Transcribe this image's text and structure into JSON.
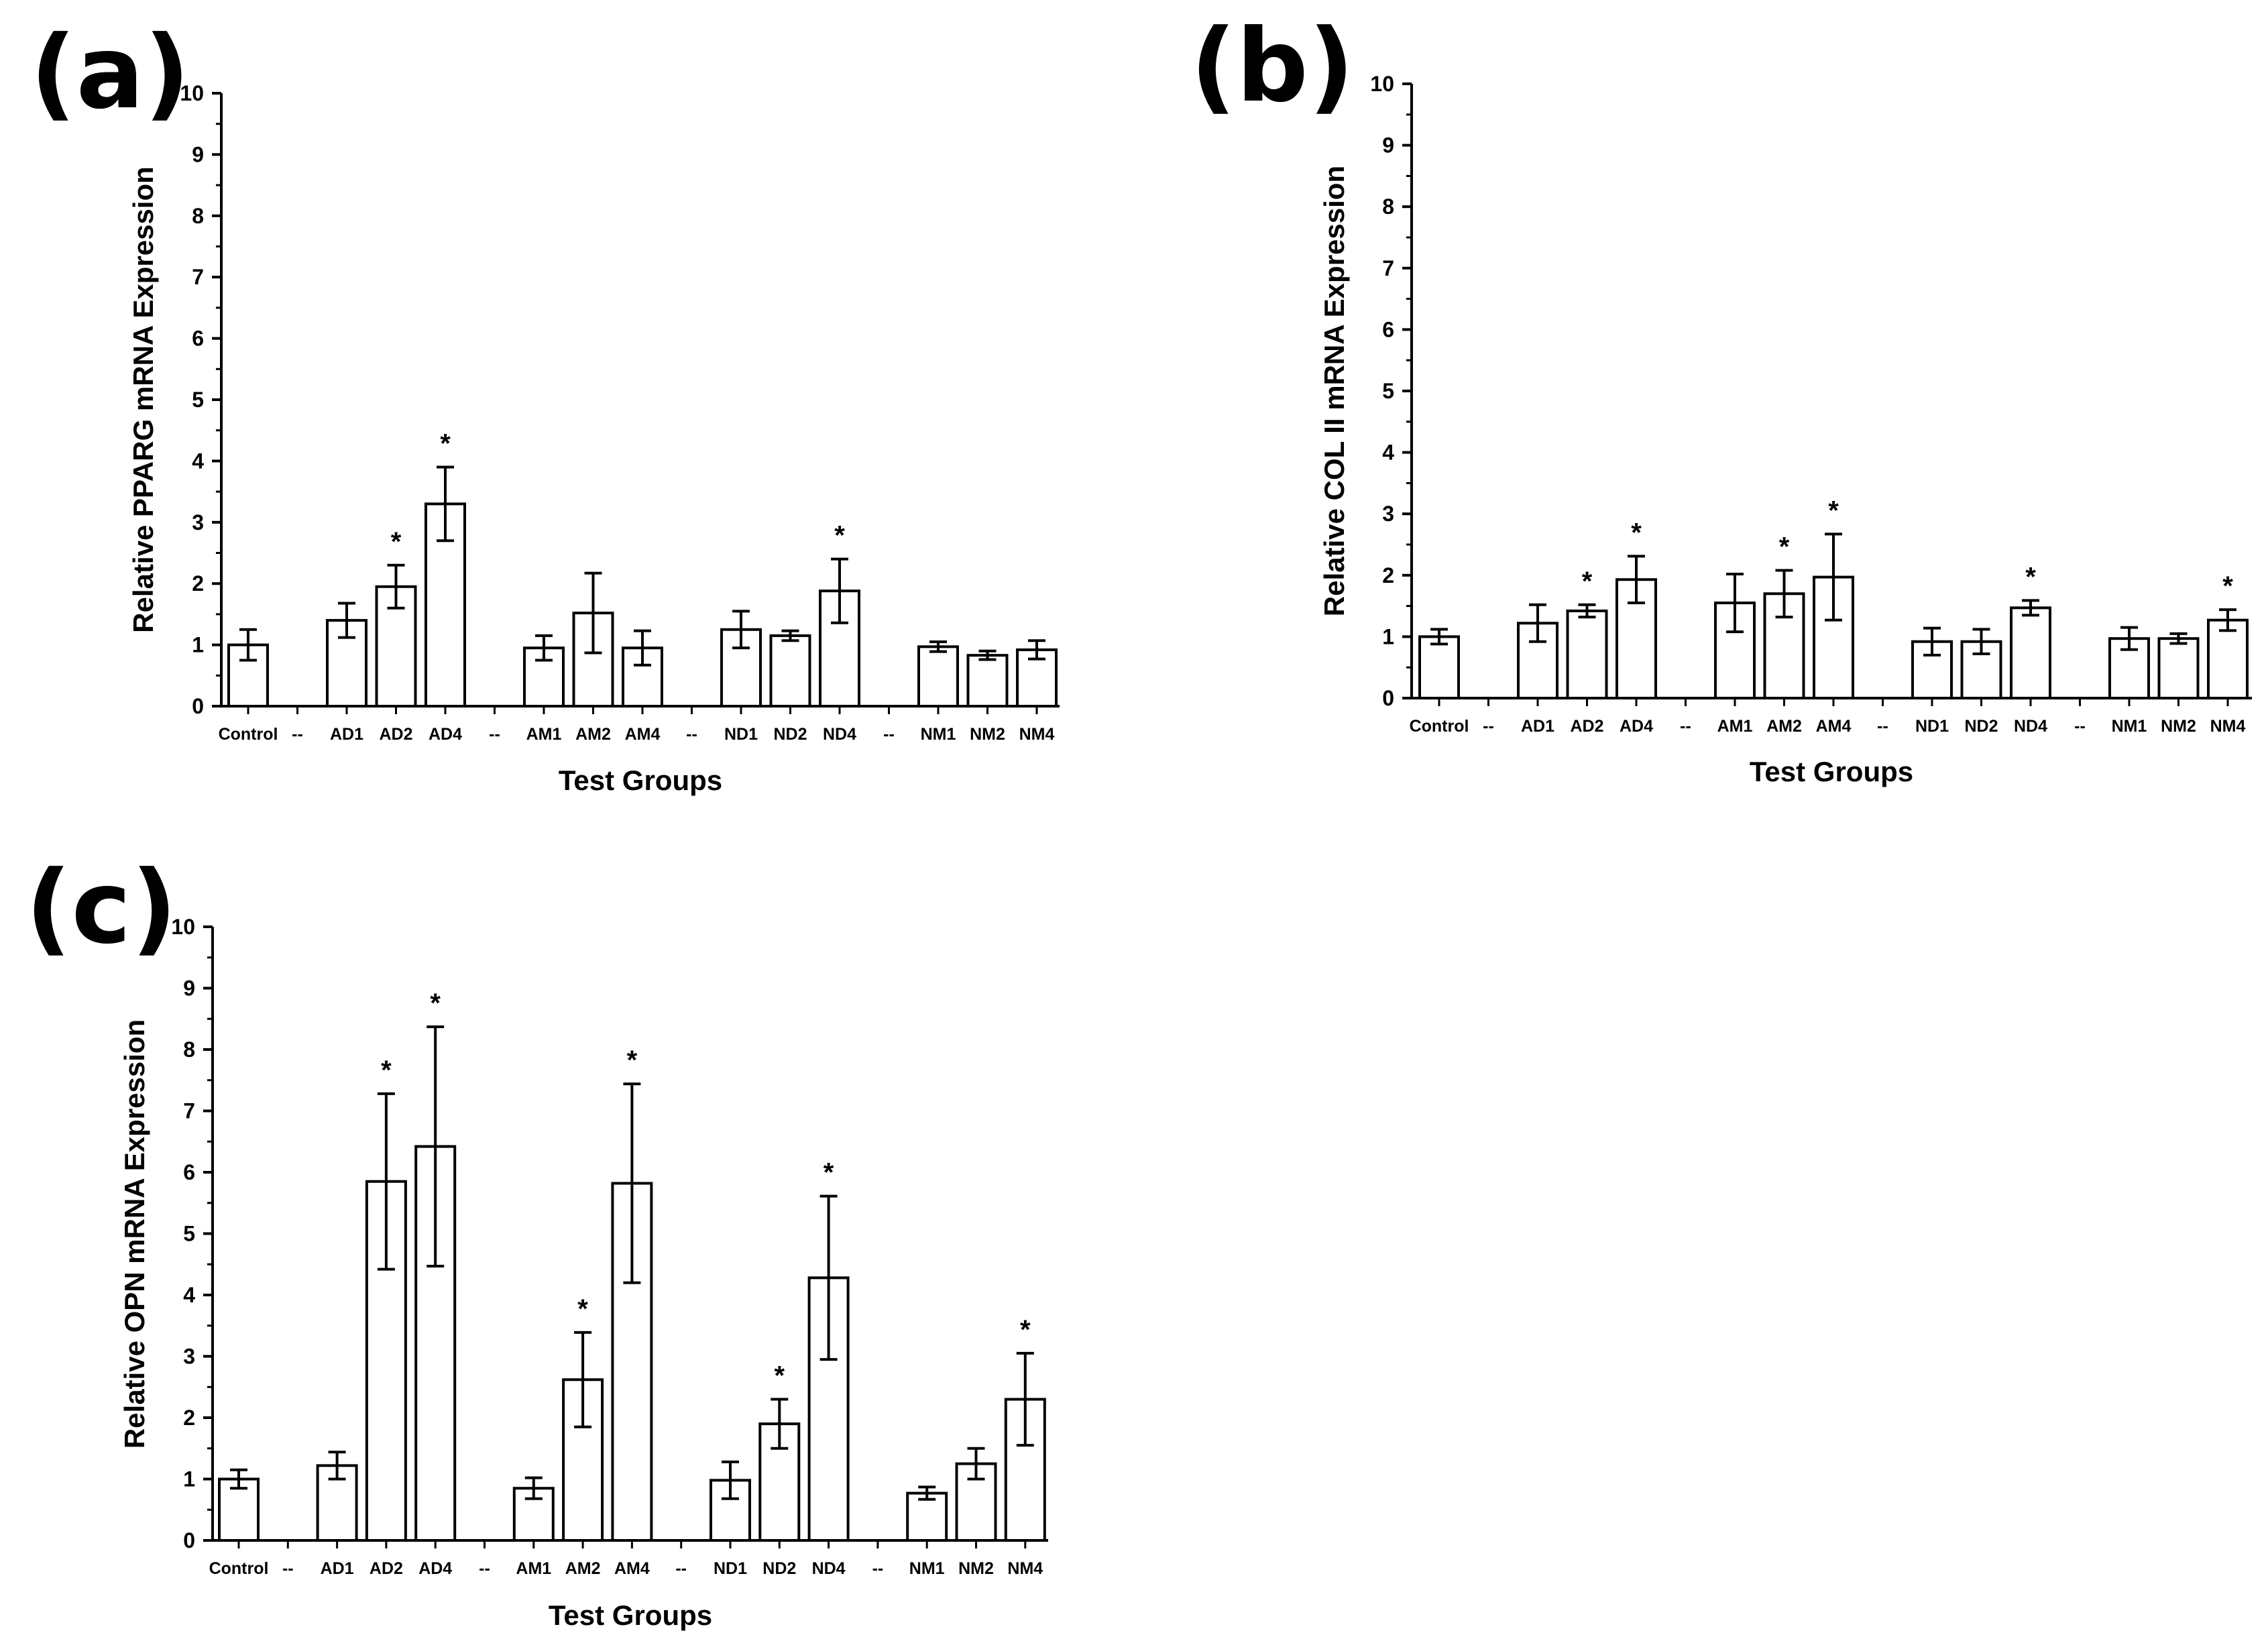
{
  "chart_data": [
    {
      "panel": "(a)",
      "type": "bar",
      "ylabel": "Relative PPARG mRNA Expression",
      "xlabel": "Test Groups",
      "ylim": [
        0,
        10
      ],
      "yticks": [
        "0",
        "1",
        "2",
        "3",
        "4",
        "5",
        "6",
        "7",
        "8",
        "9",
        "10"
      ],
      "categories": [
        "Control",
        "--",
        "AD1",
        "AD2",
        "AD4",
        "--",
        "AM1",
        "AM2",
        "AM4",
        "--",
        "ND1",
        "ND2",
        "ND4",
        "--",
        "NM1",
        "NM2",
        "NM4"
      ],
      "values": [
        1.0,
        null,
        1.4,
        1.95,
        3.3,
        null,
        0.95,
        1.52,
        0.95,
        null,
        1.25,
        1.15,
        1.88,
        null,
        0.97,
        0.83,
        0.92
      ],
      "errors": [
        0.25,
        null,
        0.28,
        0.35,
        0.6,
        null,
        0.2,
        0.65,
        0.28,
        null,
        0.3,
        0.08,
        0.52,
        null,
        0.08,
        0.07,
        0.15
      ],
      "significance": [
        "",
        "",
        "",
        "*",
        "*",
        "",
        "",
        "",
        "",
        "",
        "",
        "",
        "*",
        "",
        "",
        "",
        ""
      ]
    },
    {
      "panel": "(b)",
      "type": "bar",
      "ylabel": "Relative COL II mRNA Expression",
      "xlabel": "Test Groups",
      "ylim": [
        0,
        10
      ],
      "yticks": [
        "0",
        "1",
        "2",
        "3",
        "4",
        "5",
        "6",
        "7",
        "8",
        "9",
        "10"
      ],
      "categories": [
        "Control",
        "--",
        "AD1",
        "AD2",
        "AD4",
        "--",
        "AM1",
        "AM2",
        "AM4",
        "--",
        "ND1",
        "ND2",
        "ND4",
        "--",
        "NM1",
        "NM2",
        "NM4"
      ],
      "values": [
        1.0,
        null,
        1.22,
        1.42,
        1.93,
        null,
        1.55,
        1.7,
        1.97,
        null,
        0.92,
        0.92,
        1.47,
        null,
        0.97,
        0.97,
        1.27
      ],
      "errors": [
        0.12,
        null,
        0.3,
        0.1,
        0.38,
        null,
        0.47,
        0.38,
        0.7,
        null,
        0.22,
        0.2,
        0.12,
        null,
        0.18,
        0.08,
        0.17
      ],
      "significance": [
        "",
        "",
        "",
        "*",
        "*",
        "",
        "",
        "*",
        "*",
        "",
        "",
        "",
        "*",
        "",
        "",
        "",
        "*"
      ]
    },
    {
      "panel": "(c)",
      "type": "bar",
      "ylabel": "Relative OPN mRNA Expression",
      "xlabel": "Test Groups",
      "ylim": [
        0,
        10
      ],
      "yticks": [
        "0",
        "1",
        "2",
        "3",
        "4",
        "5",
        "6",
        "7",
        "8",
        "9",
        "10"
      ],
      "categories": [
        "Control",
        "--",
        "AD1",
        "AD2",
        "AD4",
        "--",
        "AM1",
        "AM2",
        "AM4",
        "--",
        "ND1",
        "ND2",
        "ND4",
        "--",
        "NM1",
        "NM2",
        "NM4"
      ],
      "values": [
        1.0,
        null,
        1.22,
        5.85,
        6.42,
        null,
        0.85,
        2.62,
        5.82,
        null,
        0.98,
        1.9,
        4.28,
        null,
        0.77,
        1.25,
        2.3
      ],
      "errors": [
        0.15,
        null,
        0.22,
        1.43,
        1.95,
        null,
        0.17,
        0.77,
        1.62,
        null,
        0.3,
        0.4,
        1.33,
        null,
        0.1,
        0.25,
        0.75
      ],
      "significance": [
        "",
        "",
        "",
        "*",
        "*",
        "",
        "",
        "*",
        "*",
        "",
        "",
        "*",
        "*",
        "",
        "",
        "",
        "*"
      ]
    }
  ]
}
